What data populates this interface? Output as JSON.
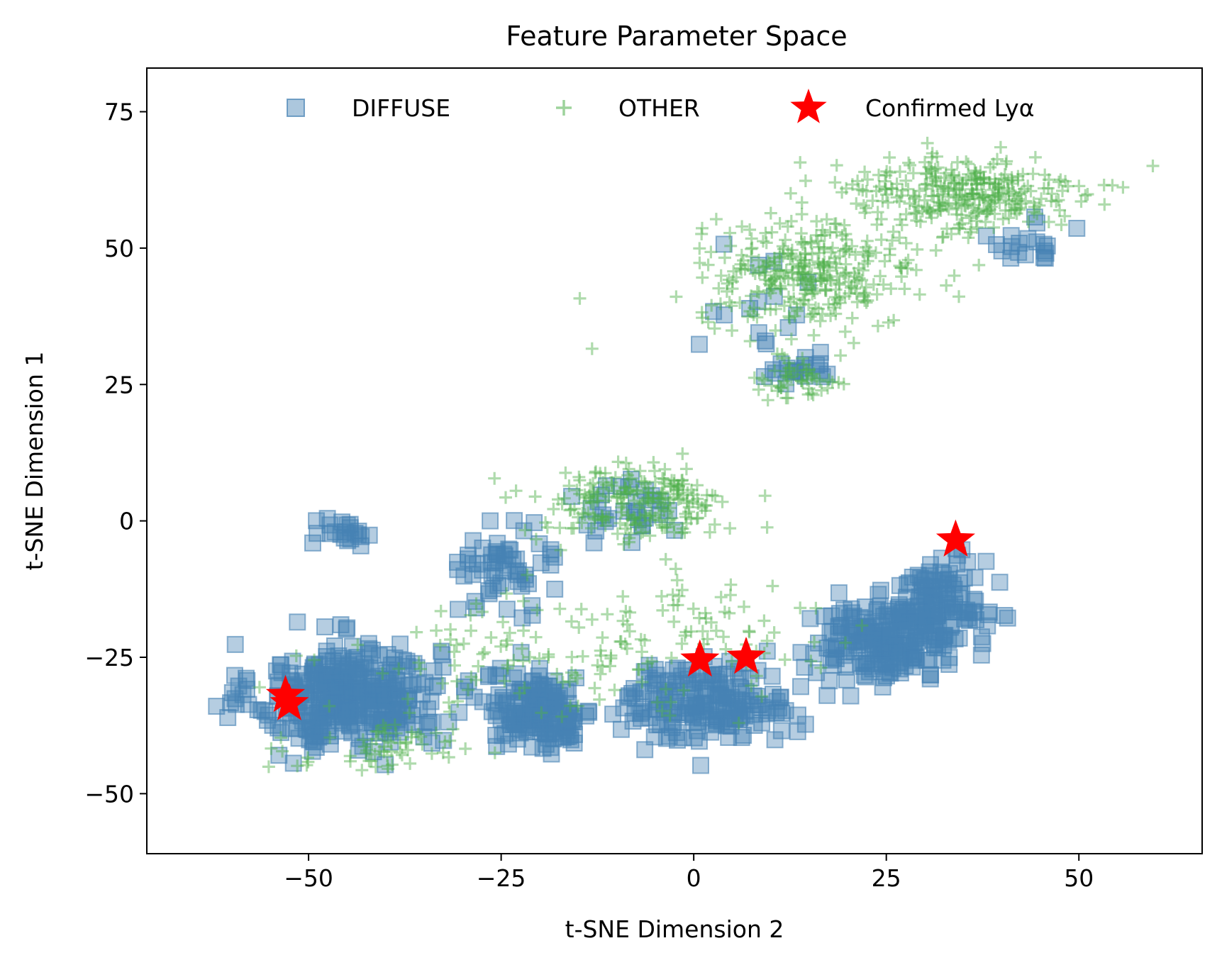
{
  "chart_data": {
    "type": "scatter",
    "title": "Feature Parameter Space",
    "xlabel": "t-SNE Dimension 2",
    "ylabel": "t-SNE Dimension 1",
    "xlim": [
      -71,
      66
    ],
    "ylim": [
      -61,
      83
    ],
    "xticks": [
      -50,
      -25,
      0,
      25,
      50
    ],
    "yticks": [
      -50,
      -25,
      0,
      25,
      50,
      75
    ],
    "xtick_labels": [
      "−50",
      "−25",
      "0",
      "25",
      "50"
    ],
    "ytick_labels": [
      "−50",
      "−25",
      "0",
      "25",
      "50",
      "75"
    ],
    "grid": false,
    "legend": {
      "location": "upper center",
      "columns": 3,
      "frame": false
    },
    "series": [
      {
        "name": "DIFFUSE",
        "marker": "square",
        "color": "#4682b4",
        "clusters": [
          {
            "center": [
              -45,
              -32
            ],
            "spread": [
              10,
              8
            ],
            "count": 380
          },
          {
            "center": [
              -20,
              -35
            ],
            "spread": [
              6,
              6
            ],
            "count": 170
          },
          {
            "center": [
              2,
              -33
            ],
            "spread": [
              9,
              6
            ],
            "count": 190
          },
          {
            "center": [
              25,
              -22
            ],
            "spread": [
              8,
              6
            ],
            "count": 210
          },
          {
            "center": [
              32,
              -15
            ],
            "spread": [
              5,
              7
            ],
            "count": 110
          },
          {
            "center": [
              -24,
              -8
            ],
            "spread": [
              5,
              6
            ],
            "count": 60
          },
          {
            "center": [
              -10,
              2
            ],
            "spread": [
              6,
              7
            ],
            "count": 30
          },
          {
            "center": [
              -45,
              -2
            ],
            "spread": [
              3,
              2
            ],
            "count": 22
          },
          {
            "center": [
              14,
              28
            ],
            "spread": [
              4,
              2
            ],
            "count": 20
          },
          {
            "center": [
              8,
              40
            ],
            "spread": [
              6,
              8
            ],
            "count": 15
          },
          {
            "center": [
              45,
              51
            ],
            "spread": [
              6,
              3
            ],
            "count": 20
          }
        ]
      },
      {
        "name": "OTHER",
        "marker": "plus",
        "color": "#4daf4a",
        "clusters": [
          {
            "center": [
              15,
              45
            ],
            "spread": [
              12,
              8
            ],
            "count": 320
          },
          {
            "center": [
              35,
              60
            ],
            "spread": [
              13,
              6
            ],
            "count": 300
          },
          {
            "center": [
              -8,
              3
            ],
            "spread": [
              11,
              6
            ],
            "count": 220
          },
          {
            "center": [
              -20,
              -25
            ],
            "spread": [
              20,
              9
            ],
            "count": 110
          },
          {
            "center": [
              -40,
              -42
            ],
            "spread": [
              10,
              4
            ],
            "count": 60
          },
          {
            "center": [
              5,
              -20
            ],
            "spread": [
              15,
              10
            ],
            "count": 60
          },
          {
            "center": [
              14,
              26
            ],
            "spread": [
              4,
              3
            ],
            "count": 50
          }
        ]
      },
      {
        "name": "Confirmed Lyα",
        "marker": "star",
        "color": "#ff0000",
        "points": [
          [
            -53,
            -32
          ],
          [
            -52.5,
            -33.5
          ],
          [
            0.8,
            -25.5
          ],
          [
            6.8,
            -25
          ],
          [
            34,
            -3.5
          ]
        ]
      }
    ]
  }
}
